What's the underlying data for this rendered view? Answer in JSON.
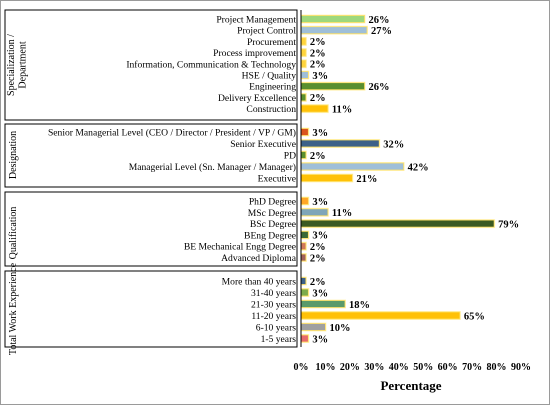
{
  "chart_data": {
    "type": "bar",
    "orientation": "horizontal",
    "xlabel": "Percentage",
    "xlim": [
      0,
      90
    ],
    "xticks": [
      "0%",
      "10%",
      "20%",
      "30%",
      "40%",
      "50%",
      "60%",
      "70%",
      "80%",
      "90%"
    ],
    "grid": false,
    "groups": [
      {
        "name": "Specialization / Department",
        "categories": [
          "Project Management",
          "Project Control",
          "Procurement",
          "Process improvement",
          "Information, Communication & Technology",
          "HSE / Quality",
          "Engineering",
          "Delivery Excellence",
          "Construction"
        ],
        "values": [
          26,
          27,
          2,
          2,
          2,
          3,
          26,
          2,
          11
        ],
        "labels": [
          "26%",
          "27%",
          "2%",
          "2%",
          "2%",
          "3%",
          "26%",
          "2%",
          "11%"
        ],
        "colors": [
          "#9ed87c",
          "#9fbfd8",
          "#ffd43b",
          "#ffd43b",
          "#ffd43b",
          "#9fbfd8",
          "#5a8f2e",
          "#5a8f2e",
          "#ffc107"
        ]
      },
      {
        "name": "Designation",
        "categories": [
          "Senior Managerial Level (CEO / Director / President / VP / GM)",
          "Senior Executive",
          "PD",
          "Managerial Level (Sn. Manager / Manager)",
          "Executive"
        ],
        "values": [
          3,
          32,
          2,
          42,
          21
        ],
        "labels": [
          "3%",
          "32%",
          "2%",
          "42%",
          "21%"
        ],
        "colors": [
          "#d9541c",
          "#3d6188",
          "#5a8f2e",
          "#9fbfd8",
          "#ffc107"
        ]
      },
      {
        "name": "Qualification",
        "categories": [
          "PhD Degree",
          "MSc Degree",
          "BSc Degree",
          "BEng Degree",
          "BE Mechanical Engg Degree",
          "Advanced Diploma"
        ],
        "values": [
          3,
          11,
          79,
          3,
          2,
          2
        ],
        "labels": [
          "3%",
          "11%",
          "79%",
          "3%",
          "2%",
          "2%"
        ],
        "colors": [
          "#ffa726",
          "#7fa6b8",
          "#3b5a22",
          "#3b6a36",
          "#d07a5a",
          "#a0605a"
        ]
      },
      {
        "name": "Total Work Experience",
        "categories": [
          "More than 40 years",
          "31-40 years",
          "21-30 years",
          "11-20 years",
          "6-10 years",
          "1-5 years"
        ],
        "values": [
          2,
          3,
          18,
          65,
          10,
          3
        ],
        "labels": [
          "2%",
          "3%",
          "18%",
          "65%",
          "10%",
          "3%"
        ],
        "colors": [
          "#3d6188",
          "#7cab4c",
          "#5a9a6a",
          "#ffc107",
          "#a0a0a0",
          "#e86a6a"
        ]
      }
    ]
  }
}
